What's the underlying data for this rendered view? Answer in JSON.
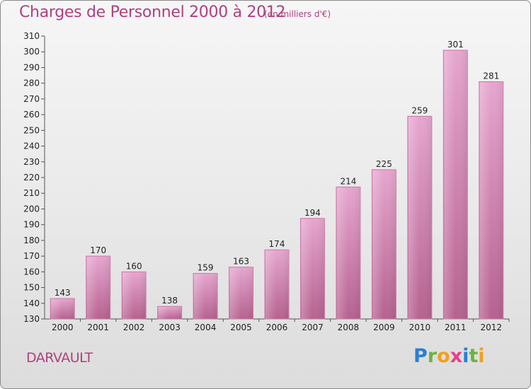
{
  "title": "Charges de Personnel 2000 à 2012",
  "subtitle": "(en milliers d'€)",
  "commune": "DARVAULT",
  "logo": {
    "text": "Proxiti",
    "letters": [
      {
        "ch": "P",
        "color": "#2a7fd4"
      },
      {
        "ch": "r",
        "color": "#6cb33f"
      },
      {
        "ch": "o",
        "color": "#f2a01c"
      },
      {
        "ch": "x",
        "color": "#e83e8c"
      },
      {
        "ch": "i",
        "color": "#2a7fd4"
      },
      {
        "ch": "t",
        "color": "#6cb33f"
      },
      {
        "ch": "i",
        "color": "#f2a01c"
      }
    ]
  },
  "colors": {
    "title": "#b0407e",
    "bar_top": "#e6a6cf",
    "bar_bottom": "#b5628f",
    "bar_edge": "#c97aa6"
  },
  "chart_data": {
    "type": "bar",
    "title": "Charges de Personnel 2000 à 2012",
    "subtitle": "(en milliers d'€)",
    "categories": [
      "2000",
      "2001",
      "2002",
      "2003",
      "2004",
      "2005",
      "2006",
      "2007",
      "2008",
      "2009",
      "2010",
      "2011",
      "2012"
    ],
    "values": [
      143,
      170,
      160,
      138,
      159,
      163,
      174,
      194,
      214,
      225,
      259,
      301,
      281
    ],
    "ylim": [
      130,
      310
    ],
    "yticks": [
      130,
      140,
      150,
      160,
      170,
      180,
      190,
      200,
      210,
      220,
      230,
      240,
      250,
      260,
      270,
      280,
      290,
      300,
      310
    ],
    "xlabel": "",
    "ylabel": "",
    "grid": false
  }
}
